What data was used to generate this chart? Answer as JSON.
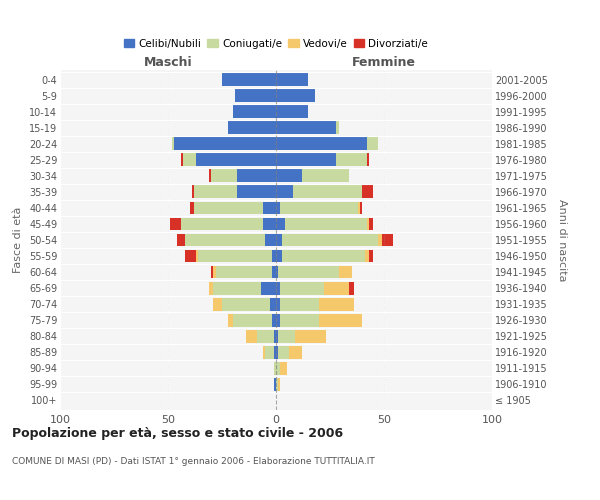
{
  "age_groups": [
    "100+",
    "95-99",
    "90-94",
    "85-89",
    "80-84",
    "75-79",
    "70-74",
    "65-69",
    "60-64",
    "55-59",
    "50-54",
    "45-49",
    "40-44",
    "35-39",
    "30-34",
    "25-29",
    "20-24",
    "15-19",
    "10-14",
    "5-9",
    "0-4"
  ],
  "birth_years": [
    "≤ 1905",
    "1906-1910",
    "1911-1915",
    "1916-1920",
    "1921-1925",
    "1926-1930",
    "1931-1935",
    "1936-1940",
    "1941-1945",
    "1946-1950",
    "1951-1955",
    "1956-1960",
    "1961-1965",
    "1966-1970",
    "1971-1975",
    "1976-1980",
    "1981-1985",
    "1986-1990",
    "1991-1995",
    "1996-2000",
    "2001-2005"
  ],
  "maschi": {
    "celibi": [
      0,
      1,
      0,
      1,
      1,
      2,
      3,
      7,
      2,
      2,
      5,
      6,
      6,
      18,
      18,
      37,
      47,
      22,
      20,
      19,
      25
    ],
    "coniugati": [
      0,
      0,
      1,
      4,
      8,
      18,
      22,
      22,
      26,
      34,
      37,
      38,
      32,
      20,
      12,
      6,
      1,
      0,
      0,
      0,
      0
    ],
    "vedovi": [
      0,
      0,
      0,
      1,
      5,
      2,
      4,
      2,
      1,
      1,
      0,
      0,
      0,
      0,
      0,
      0,
      0,
      0,
      0,
      0,
      0
    ],
    "divorziati": [
      0,
      0,
      0,
      0,
      0,
      0,
      0,
      0,
      1,
      5,
      4,
      5,
      2,
      1,
      1,
      1,
      0,
      0,
      0,
      0,
      0
    ]
  },
  "femmine": {
    "nubili": [
      0,
      0,
      0,
      1,
      1,
      2,
      2,
      2,
      1,
      3,
      3,
      4,
      2,
      8,
      12,
      28,
      42,
      28,
      15,
      18,
      15
    ],
    "coniugate": [
      0,
      1,
      2,
      5,
      8,
      18,
      18,
      20,
      28,
      38,
      44,
      38,
      36,
      32,
      22,
      14,
      5,
      1,
      0,
      0,
      0
    ],
    "vedove": [
      0,
      1,
      3,
      6,
      14,
      20,
      16,
      12,
      6,
      2,
      2,
      1,
      1,
      0,
      0,
      0,
      0,
      0,
      0,
      0,
      0
    ],
    "divorziate": [
      0,
      0,
      0,
      0,
      0,
      0,
      0,
      2,
      0,
      2,
      5,
      2,
      1,
      5,
      0,
      1,
      0,
      0,
      0,
      0,
      0
    ]
  },
  "colors": {
    "celibi": "#4472c4",
    "coniugati": "#c8daa0",
    "vedovi": "#f5c96b",
    "divorziati": "#d73027"
  },
  "xlim": 100,
  "title": "Popolazione per età, sesso e stato civile - 2006",
  "subtitle": "COMUNE DI MASI (PD) - Dati ISTAT 1° gennaio 2006 - Elaborazione TUTTITALIA.IT",
  "ylabel_left": "Fasce di età",
  "ylabel_right": "Anni di nascita",
  "xlabel_left": "Maschi",
  "xlabel_right": "Femmine"
}
